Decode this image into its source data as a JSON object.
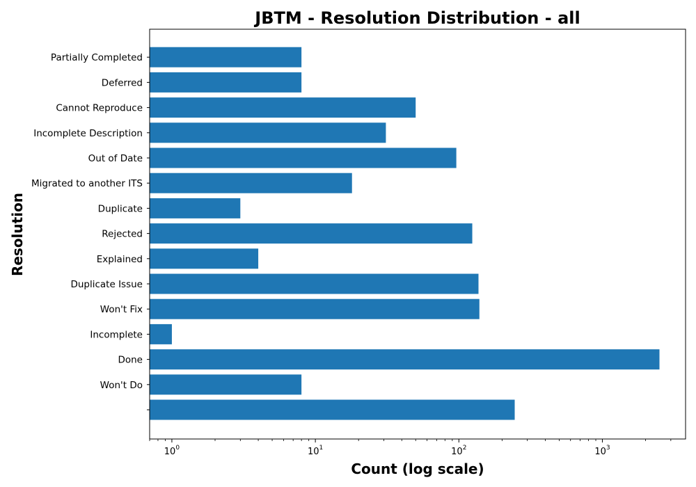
{
  "chart_data": {
    "type": "bar",
    "orientation": "horizontal",
    "title": "JBTM - Resolution Distribution - all",
    "xlabel": "Count (log scale)",
    "ylabel": "Resolution",
    "xscale": "log",
    "xlim": [
      0.7,
      3800
    ],
    "x_ticks": [
      {
        "value": 1,
        "base": "10",
        "exp": "0"
      },
      {
        "value": 10,
        "base": "10",
        "exp": "1"
      },
      {
        "value": 100,
        "base": "10",
        "exp": "2"
      },
      {
        "value": 1000,
        "base": "10",
        "exp": "3"
      }
    ],
    "bar_color": "#1f77b4",
    "grid": false,
    "categories": [
      "",
      "Won't Do",
      "Done",
      "Incomplete",
      "Won't Fix",
      "Duplicate Issue",
      "Explained",
      "Rejected",
      "Duplicate",
      "Migrated to another ITS",
      "Out of Date",
      "Incomplete Description",
      "Cannot Reproduce",
      "Deferred",
      "Partially Completed"
    ],
    "values": [
      245,
      8,
      2500,
      1,
      139,
      137,
      4,
      124,
      3,
      18,
      96,
      31,
      50,
      8,
      8
    ]
  }
}
